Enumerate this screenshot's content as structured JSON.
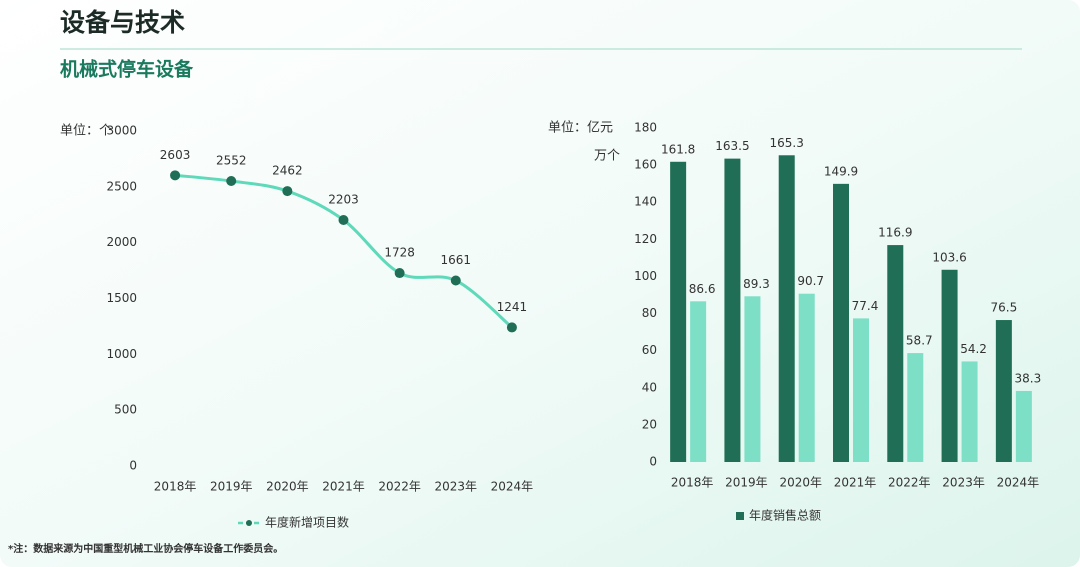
{
  "header": {
    "title": "设备与技术",
    "subtitle": "机械式停车设备"
  },
  "chart_data": [
    {
      "type": "line",
      "ylabel": "单位：个",
      "categories": [
        "2018年",
        "2019年",
        "2020年",
        "2021年",
        "2022年",
        "2023年",
        "2024年"
      ],
      "series": [
        {
          "name": "年度新增项目数",
          "color": "#5ed9b9",
          "marker_color": "#1f6e55",
          "values": [
            2603,
            2552,
            2462,
            2203,
            1728,
            1661,
            1241
          ]
        }
      ],
      "ylim": [
        0,
        3000
      ],
      "yticks": [
        0,
        500,
        1000,
        1500,
        2000,
        2500,
        3000
      ],
      "grid": false
    },
    {
      "type": "bar",
      "ylabel": [
        "单位：亿元",
        "万个"
      ],
      "categories": [
        "2018年",
        "2019年",
        "2020年",
        "2021年",
        "2022年",
        "2023年",
        "2024年"
      ],
      "series": [
        {
          "name": "年度销售总额",
          "color": "#1f6e55",
          "values": [
            161.8,
            163.5,
            165.3,
            149.9,
            116.9,
            103.6,
            76.5
          ]
        },
        {
          "color": "#7ddfc6",
          "values": [
            86.6,
            89.3,
            90.7,
            77.4,
            58.7,
            54.2,
            38.3
          ]
        }
      ],
      "ylim": [
        0,
        180
      ],
      "yticks": [
        0,
        20,
        40,
        60,
        80,
        100,
        120,
        140,
        160,
        180
      ],
      "grid": false
    }
  ],
  "note": "*注：数据来源为中国重型机械工业协会停车设备工作委员会。"
}
